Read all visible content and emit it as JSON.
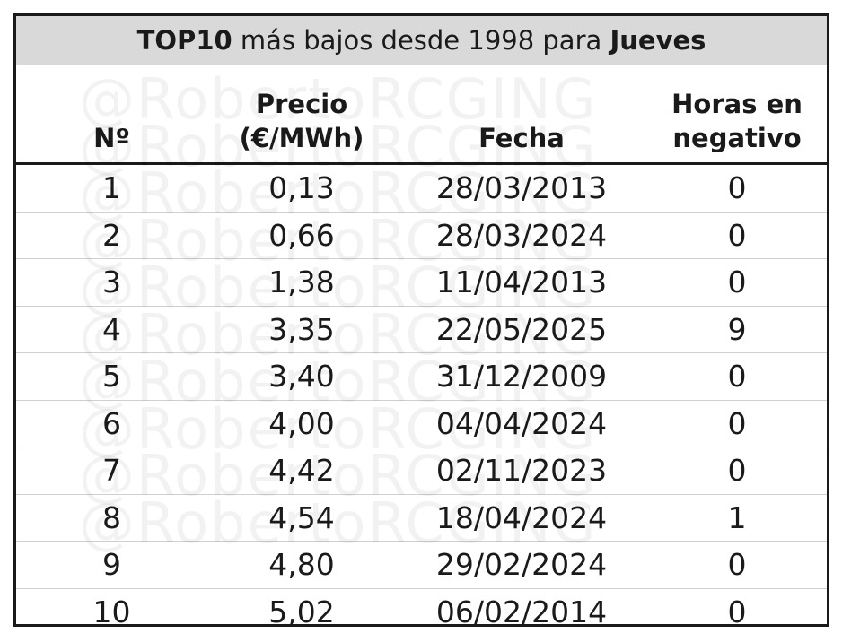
{
  "title": {
    "lead": "TOP10",
    "middle": "más bajos desde 1998 para",
    "day": "Jueves"
  },
  "watermark": "@RobertoRCGING",
  "table": {
    "header": [
      [
        "Nº"
      ],
      [
        "Precio",
        "(€/MWh)"
      ],
      [
        "Fecha"
      ],
      [
        "Horas en",
        "negativo"
      ]
    ],
    "rows": [
      [
        "1",
        "0,13",
        "28/03/2013",
        "0"
      ],
      [
        "2",
        "0,66",
        "28/03/2024",
        "0"
      ],
      [
        "3",
        "1,38",
        "11/04/2013",
        "0"
      ],
      [
        "4",
        "3,35",
        "22/05/2025",
        "9"
      ],
      [
        "5",
        "3,40",
        "31/12/2009",
        "0"
      ],
      [
        "6",
        "4,00",
        "04/04/2024",
        "0"
      ],
      [
        "7",
        "4,42",
        "02/11/2023",
        "0"
      ],
      [
        "8",
        "4,54",
        "18/04/2024",
        "1"
      ],
      [
        "9",
        "4,80",
        "29/02/2024",
        "0"
      ],
      [
        "10",
        "5,02",
        "06/02/2014",
        "0"
      ]
    ]
  }
}
